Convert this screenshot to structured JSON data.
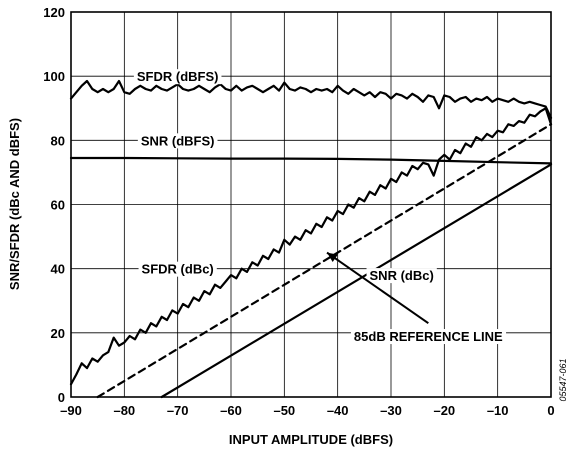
{
  "chart_data": {
    "type": "line",
    "xlabel": "INPUT AMPLITUDE (dBFS)",
    "ylabel": "SNR/SFDR (dBc AND dBFS)",
    "xlim": [
      -90,
      0
    ],
    "ylim": [
      0,
      120
    ],
    "xticks": [
      -90,
      -80,
      -70,
      -60,
      -50,
      -40,
      -30,
      -20,
      -10,
      0
    ],
    "xtick_labels": [
      "–90",
      "–80",
      "–70",
      "–60",
      "–50",
      "–40",
      "–30",
      "–20",
      "–10",
      "0"
    ],
    "yticks": [
      0,
      20,
      40,
      60,
      80,
      100,
      120
    ],
    "ytick_labels": [
      "0",
      "20",
      "40",
      "60",
      "80",
      "100",
      "120"
    ],
    "grid": true,
    "figure_id": "05547-061",
    "series": [
      {
        "name": "SFDR (dBFS)",
        "style": "solid",
        "x": [
          -90,
          -88,
          -87,
          -86,
          -85,
          -84,
          -83,
          -82,
          -81,
          -80,
          -79,
          -78,
          -77,
          -76,
          -75,
          -74,
          -73,
          -72,
          -71,
          -70,
          -69,
          -68,
          -67,
          -66,
          -65,
          -64,
          -63,
          -62,
          -61,
          -60,
          -59,
          -58,
          -57,
          -56,
          -55,
          -54,
          -53,
          -52,
          -51,
          -50,
          -49,
          -48,
          -47,
          -46,
          -45,
          -44,
          -43,
          -42,
          -41,
          -40,
          -39,
          -38,
          -37,
          -36,
          -35,
          -34,
          -33,
          -32,
          -31,
          -30,
          -29,
          -28,
          -27,
          -26,
          -25,
          -24,
          -23,
          -22,
          -21,
          -20,
          -19,
          -18,
          -17,
          -16,
          -15,
          -14,
          -13,
          -12,
          -11,
          -10,
          -9,
          -8,
          -7,
          -6,
          -5,
          -4,
          -3,
          -2,
          -1,
          0
        ],
        "y": [
          93,
          97,
          98.5,
          96,
          95,
          96,
          95,
          96,
          98.5,
          95,
          94.5,
          96,
          97,
          96,
          95.5,
          97,
          96,
          95.5,
          96.5,
          97.5,
          96,
          95.5,
          96,
          97,
          96,
          95,
          96.5,
          97.5,
          96,
          95.5,
          97,
          95.5,
          96.5,
          97,
          96,
          95,
          96,
          97,
          95.5,
          98,
          96,
          95.5,
          96.5,
          96,
          95,
          96,
          95.5,
          96,
          95,
          97,
          95.5,
          94.5,
          96,
          95,
          94,
          95,
          93.5,
          95,
          94.5,
          93,
          94.5,
          94,
          93,
          94.5,
          93.5,
          92,
          94,
          93.5,
          90,
          94,
          93.5,
          92,
          93,
          93.5,
          92,
          93,
          92.5,
          93.5,
          92,
          93,
          92.5,
          92,
          93,
          92,
          91.5,
          92,
          91.5,
          91,
          90.5,
          87
        ]
      },
      {
        "name": "SNR (dBFS)",
        "style": "solid",
        "x": [
          -90,
          -80,
          -70,
          -60,
          -50,
          -40,
          -30,
          -20,
          -10,
          0
        ],
        "y": [
          74.5,
          74.5,
          74.4,
          74.3,
          74.3,
          74.2,
          74,
          73.6,
          73.2,
          72.8
        ]
      },
      {
        "name": "SFDR (dBc)",
        "style": "solid",
        "x": [
          -90,
          -89,
          -88,
          -87,
          -86,
          -85,
          -84,
          -83,
          -82,
          -81,
          -80,
          -79,
          -78,
          -77,
          -76,
          -75,
          -74,
          -73,
          -72,
          -71,
          -70,
          -69,
          -68,
          -67,
          -66,
          -65,
          -64,
          -63,
          -62,
          -61,
          -60,
          -59,
          -58,
          -57,
          -56,
          -55,
          -54,
          -53,
          -52,
          -51,
          -50,
          -49,
          -48,
          -47,
          -46,
          -45,
          -44,
          -43,
          -42,
          -41,
          -40,
          -39,
          -38,
          -37,
          -36,
          -35,
          -34,
          -33,
          -32,
          -31,
          -30,
          -29,
          -28,
          -27,
          -26,
          -25,
          -24,
          -23,
          -22,
          -21,
          -20,
          -19,
          -18,
          -17,
          -16,
          -15,
          -14,
          -13,
          -12,
          -11,
          -10,
          -9,
          -8,
          -7,
          -6,
          -5,
          -4,
          -3,
          -2,
          -1,
          0
        ],
        "y": [
          4,
          7,
          10.5,
          9,
          12,
          11,
          13,
          14,
          18.5,
          16,
          17,
          19,
          18,
          21,
          20,
          23,
          22,
          25,
          24,
          27,
          26,
          29,
          28,
          31,
          30,
          33,
          32,
          35,
          34,
          36,
          38,
          37,
          40,
          39,
          42,
          41,
          44,
          43,
          46,
          45,
          49,
          47.5,
          50,
          49,
          52,
          51,
          54,
          53,
          56,
          55,
          58,
          57,
          60,
          59,
          62,
          61,
          64,
          63,
          66,
          65,
          68,
          67,
          70,
          69,
          72,
          71,
          73,
          72.5,
          69,
          74,
          75.5,
          74,
          77,
          76,
          79,
          78,
          81,
          80,
          82,
          81,
          83,
          82.5,
          85,
          84.5,
          86,
          85.5,
          88,
          87.5,
          89,
          90,
          85
        ]
      },
      {
        "name": "SNR (dBc)",
        "style": "solid",
        "x": [
          -73,
          0
        ],
        "y": [
          0,
          72.5
        ]
      },
      {
        "name": "85dB REFERENCE LINE",
        "style": "dashed",
        "x": [
          -85,
          0
        ],
        "y": [
          0,
          85
        ]
      }
    ],
    "annotations": [
      {
        "text": "SFDR (dBFS)",
        "x": -70,
        "y": 100
      },
      {
        "text": "SNR (dBFS)",
        "x": -70,
        "y": 80
      },
      {
        "text": "SFDR (dBc)",
        "x": -70,
        "y": 40
      },
      {
        "text": "SNR (dBc)",
        "x": -28,
        "y": 38
      },
      {
        "text": "85dB REFERENCE LINE",
        "x": -23,
        "y": 19
      }
    ]
  }
}
